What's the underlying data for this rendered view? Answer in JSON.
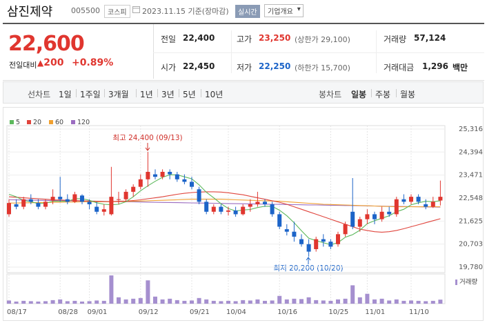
{
  "header": {
    "name": "삼진제약",
    "code": "005500",
    "market": "코스피",
    "date": "2023.11.15 기준(장마감)",
    "realtime": "실시간",
    "overview": "기업개요"
  },
  "quote": {
    "price": "22,600",
    "change_label": "전일대비",
    "change": "200",
    "change_pct": "+0.89%",
    "stats": [
      {
        "label": "전일",
        "value": "22,400"
      },
      {
        "label": "고가",
        "value": "23,250",
        "extra": "(상한가 29,100)"
      },
      {
        "label": "거래량",
        "value": "57,124"
      },
      {
        "label": "시가",
        "value": "22,450"
      },
      {
        "label": "저가",
        "value": "22,250",
        "extra": "(하한가 15,700)"
      },
      {
        "label": "거래대금",
        "value": "1,296",
        "unit": "백만"
      }
    ]
  },
  "toolbar": {
    "line_label": "선차트",
    "line_periods": [
      "1일",
      "1주일",
      "3개월",
      "1년",
      "3년",
      "5년",
      "10년"
    ],
    "candle_label": "봉차트",
    "candle_periods": [
      "일봉",
      "주봉",
      "월봉"
    ]
  },
  "chart_data": {
    "type": "candlestick",
    "categories": [
      "08/17",
      null,
      null,
      null,
      null,
      null,
      null,
      "08/28",
      null,
      null,
      null,
      "09/01",
      null,
      null,
      null,
      null,
      null,
      null,
      "09/12",
      null,
      null,
      null,
      null,
      null,
      null,
      "09/21",
      null,
      null,
      null,
      null,
      "10/04",
      null,
      null,
      null,
      null,
      null,
      null,
      "10/16",
      null,
      null,
      null,
      null,
      null,
      null,
      "10/25",
      null,
      null,
      null,
      null,
      "11/01",
      null,
      null,
      null,
      null,
      null,
      "11/10",
      null,
      null,
      null,
      null
    ],
    "open": [
      21900,
      22300,
      22200,
      22500,
      22350,
      22200,
      22450,
      22600,
      22500,
      22400,
      22650,
      22400,
      22200,
      22000,
      21900,
      22500,
      22500,
      22800,
      23000,
      23300,
      23500,
      23400,
      23600,
      23500,
      23300,
      23200,
      22900,
      22400,
      22000,
      22200,
      22000,
      22050,
      21900,
      22200,
      22300,
      22400,
      22300,
      21900,
      21300,
      21200,
      20900,
      20700,
      20500,
      20900,
      20800,
      20700,
      21100,
      22000,
      21400,
      21700,
      21900,
      21700,
      22000,
      21900,
      22500,
      22400,
      22600,
      22300,
      22200,
      22450
    ],
    "high": [
      22500,
      22500,
      22600,
      22700,
      22500,
      22500,
      22900,
      23400,
      22700,
      22800,
      22700,
      22500,
      22400,
      22300,
      23800,
      22800,
      22900,
      23100,
      23500,
      24400,
      23700,
      23700,
      23700,
      23600,
      23500,
      23400,
      23000,
      22500,
      22300,
      22300,
      22200,
      22200,
      22300,
      22500,
      22800,
      22500,
      22400,
      22000,
      21500,
      21600,
      21100,
      20900,
      21000,
      21100,
      20900,
      21200,
      21600,
      23350,
      21800,
      22100,
      22000,
      22200,
      22200,
      22600,
      22700,
      22700,
      22700,
      22500,
      22600,
      23250
    ],
    "low": [
      21800,
      22100,
      22100,
      22300,
      22100,
      22100,
      22300,
      22400,
      22300,
      22350,
      22300,
      22100,
      21900,
      21850,
      21850,
      22300,
      22400,
      22600,
      22900,
      23000,
      23300,
      23300,
      23300,
      23200,
      23100,
      22900,
      22300,
      21900,
      21900,
      21900,
      21850,
      21800,
      21850,
      22000,
      22200,
      22200,
      21800,
      21300,
      21050,
      20800,
      20600,
      20200,
      20400,
      20600,
      20500,
      20600,
      21000,
      21300,
      21200,
      21500,
      21500,
      21600,
      21800,
      21800,
      22300,
      22300,
      22300,
      22100,
      22150,
      22250
    ],
    "close": [
      22350,
      22200,
      22500,
      22400,
      22200,
      22400,
      22600,
      22500,
      22400,
      22700,
      22400,
      22300,
      22000,
      22100,
      22600,
      22500,
      22800,
      23000,
      23300,
      23600,
      23400,
      23600,
      23500,
      23300,
      23200,
      23000,
      22400,
      22000,
      22200,
      22000,
      22050,
      21900,
      22200,
      22300,
      22400,
      22300,
      21900,
      21400,
      21200,
      21000,
      20700,
      20400,
      20900,
      20800,
      20600,
      21100,
      21500,
      21400,
      21700,
      21900,
      21700,
      22000,
      21900,
      22500,
      22400,
      22600,
      22400,
      22200,
      22400,
      22600
    ],
    "up_color": "#e0362f",
    "down_color": "#1c64c8",
    "series": [
      {
        "name": "5",
        "color": "#5cb85c",
        "values": [
          22700,
          22600,
          22450,
          22400,
          22330,
          22340,
          22420,
          22420,
          22420,
          22520,
          22520,
          22460,
          22360,
          22300,
          22280,
          22300,
          22400,
          22600,
          22840,
          23040,
          23220,
          23380,
          23480,
          23480,
          23400,
          23320,
          23080,
          22780,
          22560,
          22320,
          22130,
          22030,
          22070,
          22090,
          22170,
          22220,
          22220,
          22060,
          21840,
          21560,
          21240,
          20940,
          20840,
          20760,
          20680,
          20760,
          20980,
          21080,
          21260,
          21520,
          21640,
          21740,
          21840,
          22000,
          22100,
          22280,
          22360,
          22420,
          22400,
          22440
        ]
      },
      {
        "name": "20",
        "color": "#e0443c",
        "values": [
          22600,
          22580,
          22560,
          22540,
          22520,
          22500,
          22480,
          22470,
          22460,
          22450,
          22440,
          22430,
          22420,
          22410,
          22410,
          22420,
          22430,
          22450,
          22480,
          22520,
          22560,
          22600,
          22650,
          22700,
          22740,
          22770,
          22790,
          22800,
          22800,
          22790,
          22760,
          22720,
          22680,
          22620,
          22560,
          22500,
          22440,
          22380,
          22300,
          22200,
          22100,
          22000,
          21900,
          21800,
          21700,
          21600,
          21500,
          21400,
          21300,
          21250,
          21200,
          21180,
          21200,
          21250,
          21320,
          21400,
          21480,
          21560,
          21640,
          21720
        ]
      },
      {
        "name": "60",
        "color": "#f0a030",
        "values": [
          22350,
          22350,
          22360,
          22360,
          22370,
          22370,
          22380,
          22380,
          22390,
          22390,
          22400,
          22400,
          22400,
          22400,
          22400,
          22410,
          22410,
          22420,
          22430,
          22440,
          22450,
          22460,
          22470,
          22480,
          22490,
          22500,
          22500,
          22500,
          22500,
          22500,
          22490,
          22480,
          22470,
          22460,
          22450,
          22440,
          22430,
          22420,
          22400,
          22380,
          22360,
          22340,
          22320,
          22300,
          22290,
          22280,
          22270,
          22260,
          22250,
          22240,
          22230,
          22220,
          22210,
          22200,
          22200,
          22200,
          22200,
          22200,
          22200,
          22200
        ]
      },
      {
        "name": "120",
        "color": "#9b6cc0",
        "values": [
          22480,
          22475,
          22470,
          22465,
          22460,
          22455,
          22450,
          22445,
          22440,
          22435,
          22430,
          22425,
          22420,
          22415,
          22410,
          22405,
          22400,
          22395,
          22390,
          22385,
          22380,
          22375,
          22370,
          22365,
          22360,
          22355,
          22350,
          22345,
          22340,
          22335,
          22330,
          22325,
          22320,
          22315,
          22310,
          22305,
          22300,
          22295,
          22290,
          22285,
          22280,
          22275,
          22270,
          22265,
          22260,
          22255,
          22250,
          22245,
          22240,
          22235,
          22230,
          22225,
          22220,
          22215,
          22210,
          22205,
          22200,
          22195,
          22190,
          22185
        ]
      }
    ],
    "volume": {
      "name": "거래량",
      "color": "#a58fcf",
      "ylim": [
        0,
        420000
      ],
      "values": [
        45000,
        30000,
        40000,
        35000,
        30000,
        35000,
        50000,
        60000,
        35000,
        40000,
        30000,
        35000,
        45000,
        40000,
        400000,
        90000,
        60000,
        70000,
        80000,
        330000,
        100000,
        60000,
        70000,
        50000,
        40000,
        45000,
        80000,
        60000,
        40000,
        35000,
        40000,
        35000,
        50000,
        45000,
        60000,
        40000,
        45000,
        110000,
        60000,
        70000,
        65000,
        90000,
        50000,
        45000,
        40000,
        60000,
        70000,
        260000,
        90000,
        140000,
        60000,
        70000,
        45000,
        60000,
        40000,
        45000,
        40000,
        35000,
        40000,
        57124
      ]
    },
    "ylim": [
      19559,
      25454
    ],
    "yticks": [
      {
        "value": 19780,
        "label": "19,780"
      },
      {
        "value": 20703,
        "label": "20,703"
      },
      {
        "value": 21625,
        "label": "21,625"
      },
      {
        "value": 22548,
        "label": "22,548"
      },
      {
        "value": 23471,
        "label": "23,471"
      },
      {
        "value": 24394,
        "label": "24,394"
      },
      {
        "value": 25316,
        "label": "25,316"
      }
    ],
    "grid": true,
    "annotations": [
      "최고 24,400 (09/13)",
      "최저 20,200 (10/20)"
    ]
  }
}
